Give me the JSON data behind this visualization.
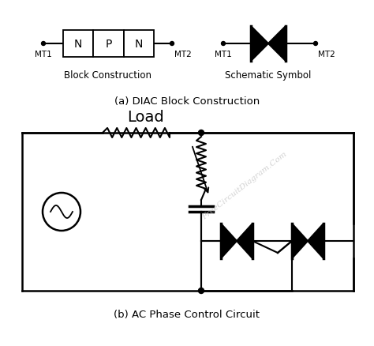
{
  "bg_color": "#ffffff",
  "line_color": "#000000",
  "title_a": "(a) DIAC Block Construction",
  "title_b": "(b) AC Phase Control Circuit",
  "label_block": "Block Construction",
  "label_schematic": "Schematic Symbol",
  "label_load": "Load",
  "watermark": "FreeCircuitDiagram.Com",
  "mt1_label": "MT1",
  "mt2_label": "MT2",
  "figsize": [
    4.74,
    4.38
  ],
  "dpi": 100
}
